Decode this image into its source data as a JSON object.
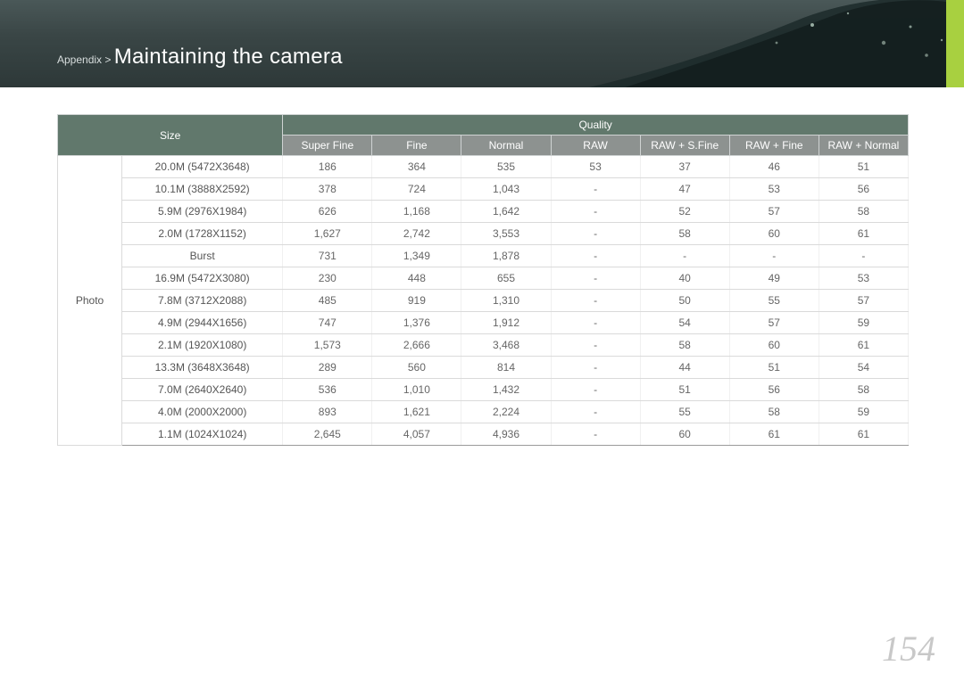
{
  "header": {
    "breadcrumb_prefix": "Appendix > ",
    "title": "Maintaining the camera",
    "accent_color": "#a8d040",
    "band_gradient_top": "#4a5858",
    "band_gradient_bottom": "#2d3838"
  },
  "page_number": "154",
  "table": {
    "rowgroup_label": "Photo",
    "header_size": "Size",
    "header_quality": "Quality",
    "columns": [
      "Super Fine",
      "Fine",
      "Normal",
      "RAW",
      "RAW + S.Fine",
      "RAW + Fine",
      "RAW + Normal"
    ],
    "header_bg_main": "#61786c",
    "header_bg_sub": "#8d9290",
    "header_text_color": "#ffffff",
    "row_border_color": "#dadada",
    "cell_text_color": "#666666",
    "rows": [
      {
        "size": "20.0M (5472X3648)",
        "cells": [
          "186",
          "364",
          "535",
          "53",
          "37",
          "46",
          "51"
        ]
      },
      {
        "size": "10.1M (3888X2592)",
        "cells": [
          "378",
          "724",
          "1,043",
          "-",
          "47",
          "53",
          "56"
        ]
      },
      {
        "size": "5.9M (2976X1984)",
        "cells": [
          "626",
          "1,168",
          "1,642",
          "-",
          "52",
          "57",
          "58"
        ]
      },
      {
        "size": "2.0M (1728X1152)",
        "cells": [
          "1,627",
          "2,742",
          "3,553",
          "-",
          "58",
          "60",
          "61"
        ]
      },
      {
        "size": "Burst",
        "cells": [
          "731",
          "1,349",
          "1,878",
          "-",
          "-",
          "-",
          "-"
        ]
      },
      {
        "size": "16.9M (5472X3080)",
        "cells": [
          "230",
          "448",
          "655",
          "-",
          "40",
          "49",
          "53"
        ]
      },
      {
        "size": "7.8M (3712X2088)",
        "cells": [
          "485",
          "919",
          "1,310",
          "-",
          "50",
          "55",
          "57"
        ]
      },
      {
        "size": "4.9M (2944X1656)",
        "cells": [
          "747",
          "1,376",
          "1,912",
          "-",
          "54",
          "57",
          "59"
        ]
      },
      {
        "size": "2.1M (1920X1080)",
        "cells": [
          "1,573",
          "2,666",
          "3,468",
          "-",
          "58",
          "60",
          "61"
        ]
      },
      {
        "size": "13.3M (3648X3648)",
        "cells": [
          "289",
          "560",
          "814",
          "-",
          "44",
          "51",
          "54"
        ]
      },
      {
        "size": "7.0M (2640X2640)",
        "cells": [
          "536",
          "1,010",
          "1,432",
          "-",
          "51",
          "56",
          "58"
        ]
      },
      {
        "size": "4.0M (2000X2000)",
        "cells": [
          "893",
          "1,621",
          "2,224",
          "-",
          "55",
          "58",
          "59"
        ]
      },
      {
        "size": "1.1M (1024X1024)",
        "cells": [
          "2,645",
          "4,057",
          "4,936",
          "-",
          "60",
          "61",
          "61"
        ]
      }
    ]
  }
}
